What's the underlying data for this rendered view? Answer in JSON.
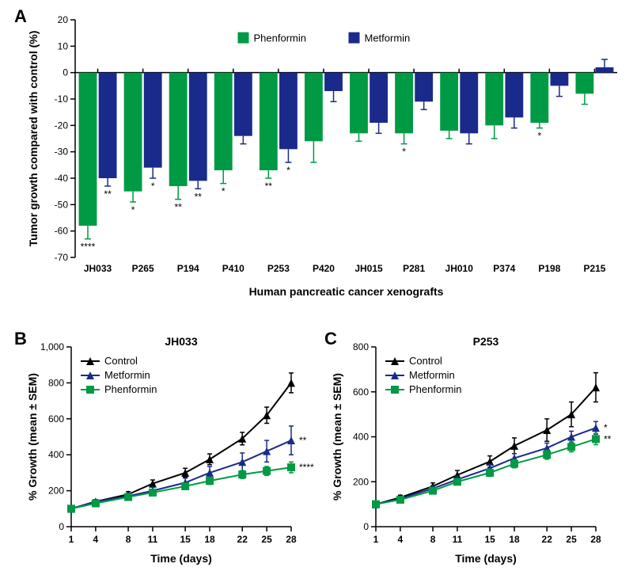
{
  "panelA": {
    "label": "A",
    "type": "bar",
    "ylabel": "Tumor growth compared with control (%)",
    "xlabel": "Human pancreatic cancer xenografts",
    "ylim": [
      -70,
      20
    ],
    "ytick_step": 10,
    "background_color": "#ffffff",
    "legend": [
      {
        "label": "Phenformin",
        "color": "#009a44"
      },
      {
        "label": "Metformin",
        "color": "#1a2a8a"
      }
    ],
    "bar_gap": 0.04,
    "bar_width": 0.4,
    "categories": [
      "JH033",
      "P265",
      "P194",
      "P410",
      "P253",
      "P420",
      "JH015",
      "P281",
      "JH010",
      "P374",
      "P198",
      "P215"
    ],
    "series": {
      "Phenformin": {
        "color": "#009a44",
        "values": [
          -58,
          -45,
          -43,
          -37,
          -37,
          -26,
          -23,
          -23,
          -22,
          -20,
          -19,
          -8
        ],
        "errors": [
          5,
          4,
          5,
          5,
          3,
          8,
          3,
          4,
          3,
          5,
          2,
          4
        ],
        "sig": [
          "****",
          "*",
          "**",
          "*",
          "**",
          "",
          "",
          "*",
          "",
          "",
          "*",
          ""
        ]
      },
      "Metformin": {
        "color": "#1a2a8a",
        "values": [
          -40,
          -36,
          -41,
          -24,
          -29,
          -7,
          -19,
          -11,
          -23,
          -17,
          -5,
          2
        ],
        "errors": [
          3,
          4,
          3,
          3,
          5,
          4,
          4,
          3,
          4,
          4,
          4,
          3
        ],
        "sig": [
          "**",
          "*",
          "**",
          "",
          "*",
          "",
          "",
          "",
          "",
          "",
          "",
          ""
        ]
      }
    }
  },
  "panelB": {
    "label": "B",
    "type": "line",
    "title": "JH033",
    "xlabel": "Time (days)",
    "ylabel": "% Growth (mean ± SEM)",
    "xvals": [
      1,
      4,
      8,
      11,
      15,
      18,
      22,
      25,
      28
    ],
    "ylim": [
      0,
      1000
    ],
    "ytick_step": 200,
    "background_color": "#ffffff",
    "series": [
      {
        "label": "Control",
        "color": "#000000",
        "marker": "triangle",
        "values": [
          100,
          140,
          180,
          240,
          300,
          375,
          490,
          620,
          800
        ],
        "errors": [
          0,
          10,
          15,
          20,
          25,
          30,
          35,
          45,
          55
        ],
        "sig": ""
      },
      {
        "label": "Metformin",
        "color": "#1a2a8a",
        "marker": "triangle",
        "values": [
          100,
          140,
          170,
          200,
          245,
          300,
          360,
          420,
          480
        ],
        "errors": [
          0,
          10,
          15,
          20,
          25,
          35,
          50,
          60,
          80
        ],
        "sig": "**"
      },
      {
        "label": "Phenformin",
        "color": "#009a44",
        "marker": "square",
        "values": [
          100,
          130,
          165,
          190,
          225,
          255,
          290,
          310,
          330
        ],
        "errors": [
          0,
          10,
          12,
          15,
          18,
          20,
          22,
          25,
          30
        ],
        "sig": "****"
      }
    ]
  },
  "panelC": {
    "label": "C",
    "type": "line",
    "title": "P253",
    "xlabel": "Time (days)",
    "ylabel": "% Growth (mean ± SEM)",
    "xvals": [
      1,
      4,
      8,
      11,
      15,
      18,
      22,
      25,
      28
    ],
    "ylim": [
      0,
      800
    ],
    "ytick_step": 200,
    "background_color": "#ffffff",
    "series": [
      {
        "label": "Control",
        "color": "#000000",
        "marker": "triangle",
        "values": [
          100,
          130,
          180,
          230,
          290,
          360,
          430,
          500,
          620
        ],
        "errors": [
          0,
          10,
          15,
          20,
          25,
          35,
          50,
          55,
          65
        ],
        "sig": ""
      },
      {
        "label": "Metformin",
        "color": "#1a2a8a",
        "marker": "triangle",
        "values": [
          100,
          125,
          170,
          210,
          260,
          305,
          350,
          400,
          440
        ],
        "errors": [
          0,
          10,
          12,
          15,
          18,
          20,
          22,
          25,
          28
        ],
        "sig": "*"
      },
      {
        "label": "Phenformin",
        "color": "#009a44",
        "marker": "square",
        "values": [
          100,
          120,
          160,
          200,
          240,
          280,
          320,
          355,
          390
        ],
        "errors": [
          0,
          10,
          12,
          14,
          16,
          18,
          20,
          22,
          25
        ],
        "sig": "**"
      }
    ]
  },
  "styling": {
    "sig_fontsize": 12,
    "cat_fontsize": 12,
    "marker_size": 5,
    "line_width": 2
  }
}
